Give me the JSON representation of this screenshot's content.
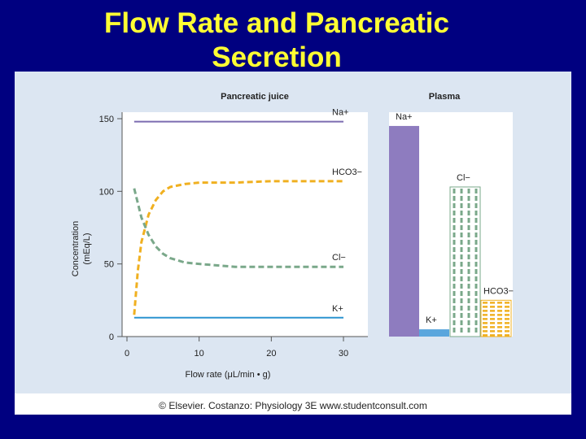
{
  "slide": {
    "title": "Flow Rate and Pancreatic\nSecretion",
    "caption": "© Elsevier. Costanzo: Physiology 3E www.studentconsult.com"
  },
  "colors": {
    "background": "#000080",
    "title": "#ffff33",
    "na": "#7b6bb0",
    "na_bar": "#8e7cbf",
    "hco3": "#f0b020",
    "cl": "#7aa88a",
    "k": "#2b94d0",
    "k_bar": "#5aa6dd"
  },
  "chart_data": [
    {
      "type": "line",
      "title": "Pancreatic juice",
      "xlabel": "Flow rate (μL/min • g)",
      "ylabel": "Concentration\n(mEq/L)",
      "xlim": [
        0,
        30
      ],
      "ylim": [
        0,
        150
      ],
      "xticks": [
        "0",
        "10",
        "20",
        "30"
      ],
      "yticks": [
        "0",
        "50",
        "100",
        "150"
      ],
      "series": [
        {
          "name": "Na+",
          "style": "solid",
          "x": [
            1,
            5,
            10,
            15,
            20,
            25,
            30
          ],
          "y": [
            148,
            148,
            148,
            148,
            148,
            148,
            148
          ]
        },
        {
          "name": "HCO3−",
          "style": "dashed",
          "x": [
            1,
            1.5,
            2,
            3,
            4,
            5,
            6,
            8,
            10,
            15,
            20,
            25,
            30
          ],
          "y": [
            15,
            45,
            65,
            84,
            94,
            100,
            103,
            105,
            106,
            106,
            107,
            107,
            107
          ]
        },
        {
          "name": "Cl−",
          "style": "dashed",
          "x": [
            1,
            2,
            3,
            4,
            5,
            6,
            8,
            10,
            15,
            20,
            25,
            30
          ],
          "y": [
            102,
            82,
            70,
            62,
            57,
            54,
            51,
            50,
            48,
            48,
            48,
            48
          ]
        },
        {
          "name": "K+",
          "style": "solid",
          "x": [
            1,
            5,
            10,
            15,
            20,
            25,
            30
          ],
          "y": [
            13,
            13,
            13,
            13,
            13,
            13,
            13
          ]
        }
      ]
    },
    {
      "type": "bar",
      "title": "Plasma",
      "categories": [
        "Na+",
        "K+",
        "Cl−",
        "HCO3−"
      ],
      "values": [
        145,
        5,
        103,
        25
      ]
    }
  ]
}
